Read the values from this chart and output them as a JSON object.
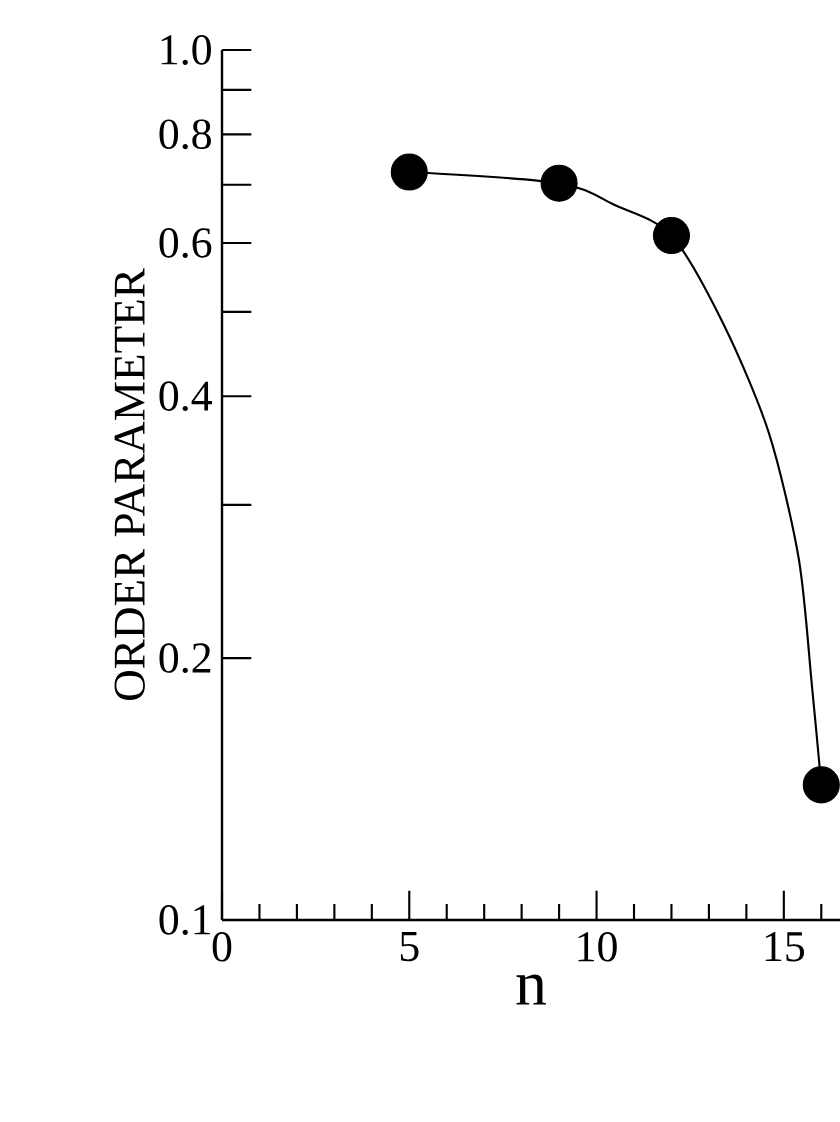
{
  "chart_data": {
    "type": "scatter",
    "xlabel": "n",
    "ylabel": "ORDER  PARAMETER",
    "series": [
      {
        "type": "scatter",
        "color": "#000000",
        "x": [
          5,
          9,
          12,
          16
        ],
        "values": [
          0.724,
          0.703,
          0.612,
          0.143
        ]
      },
      {
        "type": "line",
        "color": "#000000",
        "marker": "none",
        "x": [
          5,
          9,
          10.5,
          12,
          13.4,
          14.6,
          15.4,
          15.75,
          16
        ],
        "values": [
          0.724,
          0.703,
          0.663,
          0.612,
          0.483,
          0.363,
          0.26,
          0.186,
          0.143
        ]
      }
    ],
    "marker": "circle",
    "log": "y",
    "grid": false,
    "xlim": [
      0,
      16.5
    ],
    "ylim": [
      0.1,
      1.0
    ],
    "xticks": [
      0,
      {
        "value": 1,
        "label": null
      },
      {
        "value": 2,
        "label": null
      },
      {
        "value": 3,
        "label": null
      },
      {
        "value": 4,
        "label": null
      },
      5,
      {
        "value": 6,
        "label": null
      },
      {
        "value": 7,
        "label": null
      },
      {
        "value": 8,
        "label": null
      },
      {
        "value": 9,
        "label": null
      },
      10,
      {
        "value": 11,
        "label": null
      },
      {
        "value": 12,
        "label": null
      },
      {
        "value": 13,
        "label": null
      },
      {
        "value": 14,
        "label": null
      },
      15,
      {
        "value": 16,
        "label": null
      }
    ],
    "yticks": [
      0.1,
      0.2,
      {
        "value": 0.3,
        "label": null
      },
      0.4,
      {
        "value": 0.5,
        "label": null
      },
      0.6,
      {
        "value": 0.7,
        "label": null
      },
      0.8,
      {
        "value": 0.9,
        "label": null
      },
      {
        "value": 1,
        "label": "1.0"
      }
    ]
  }
}
